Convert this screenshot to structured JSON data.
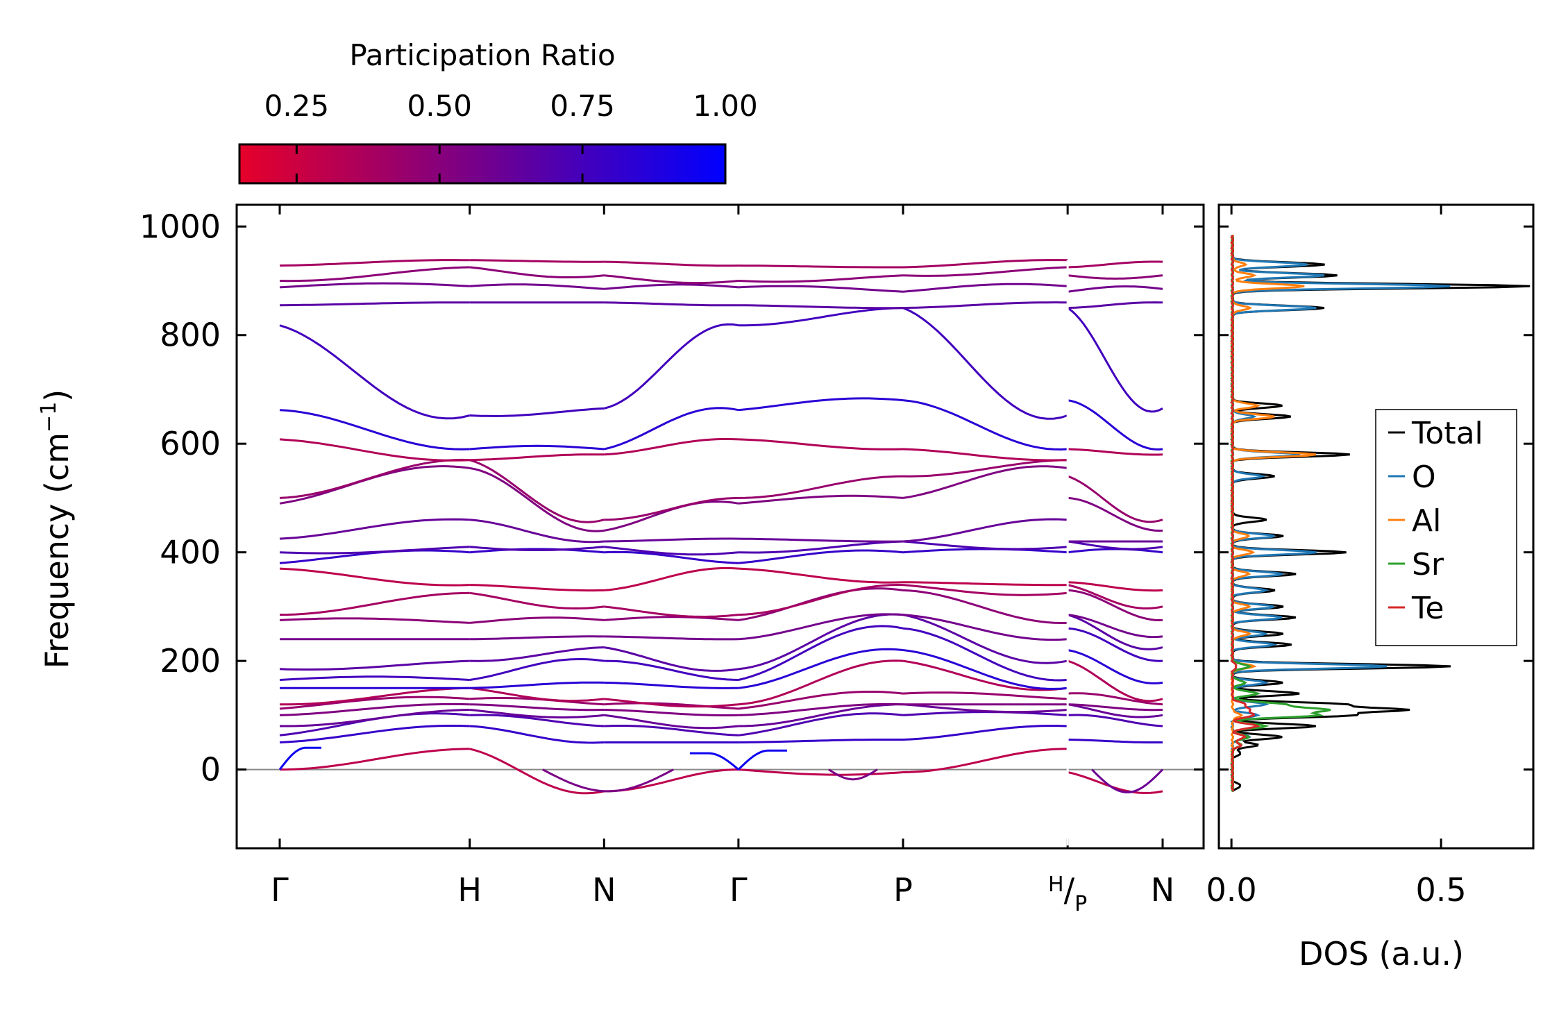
{
  "chart_data": [
    {
      "type": "line",
      "subtype": "phonon-band-structure",
      "ylabel": "Frequency (cm$^{-1}$)",
      "ylabel_main": "Frequency (cm",
      "ylabel_sup": "−1",
      "ylabel_close": ")",
      "ylim": [
        -145,
        1040
      ],
      "y_ticks": [
        0,
        200,
        400,
        600,
        800,
        1000
      ],
      "y_tick_labels": [
        "0",
        "200",
        "400",
        "600",
        "800",
        "1000"
      ],
      "x_segments": [
        {
          "from": "Γ",
          "to": "H",
          "length": 1.414
        },
        {
          "from": "H",
          "to": "N",
          "length": 1.0
        },
        {
          "from": "N",
          "to": "Γ",
          "length": 1.0
        },
        {
          "from": "Γ",
          "to": "P",
          "length": 1.225
        },
        {
          "from": "P",
          "to": "H",
          "length": 1.225
        },
        {
          "from": "P",
          "to": "N",
          "length": 0.707
        }
      ],
      "x_tick_labels": [
        {
          "main": "Γ",
          "sup": "",
          "sub": ""
        },
        {
          "main": "H",
          "sup": "",
          "sub": ""
        },
        {
          "main": "N",
          "sup": "",
          "sub": ""
        },
        {
          "main": "Γ",
          "sup": "",
          "sub": ""
        },
        {
          "main": "P",
          "sup": "",
          "sub": ""
        },
        {
          "main": "/",
          "sup": "H",
          "sub": "P"
        },
        {
          "main": "N",
          "sup": "",
          "sub": ""
        }
      ],
      "zero_line": 0,
      "color_by": "Participation Ratio",
      "bands_at_high_symmetry": {
        "Γ": [
          0,
          50,
          63,
          80,
          100,
          112,
          120,
          150,
          165,
          185,
          240,
          275,
          285,
          370,
          380,
          400,
          425,
          490,
          500,
          608,
          662,
          818,
          855,
          888,
          900,
          928
        ],
        "H": [
          38,
          80,
          100,
          110,
          120,
          130,
          150,
          165,
          200,
          240,
          270,
          325,
          340,
          400,
          410,
          460,
          555,
          570,
          590,
          652,
          860,
          890,
          925,
          938
        ],
        "N": [
          -40,
          50,
          80,
          100,
          110,
          120,
          130,
          160,
          200,
          225,
          245,
          275,
          300,
          330,
          400,
          410,
          420,
          440,
          460,
          580,
          590,
          665,
          860,
          885,
          910,
          935
        ],
        "P": [
          -5,
          55,
          100,
          120,
          140,
          200,
          220,
          260,
          285,
          330,
          340,
          345,
          400,
          420,
          500,
          540,
          590,
          680,
          850,
          880,
          910,
          925
        ]
      }
    },
    {
      "type": "line",
      "subtype": "density-of-states",
      "orientation": "horizontal",
      "xlabel": "DOS (a.u.)",
      "xlim": [
        -0.03,
        0.72
      ],
      "x_ticks": [
        0.0,
        0.5
      ],
      "x_tick_labels": [
        "0.0",
        "0.5"
      ],
      "ylim": [
        -145,
        1040
      ],
      "legend": {
        "placement": "right",
        "entries": [
          "Total",
          "O",
          "Al",
          "Sr",
          "Te"
        ]
      },
      "series": [
        {
          "name": "Total",
          "color": "#000000",
          "peaks": [
            [
              -30,
              0.02
            ],
            [
              30,
              0.02
            ],
            [
              45,
              0.06
            ],
            [
              60,
              0.12
            ],
            [
              80,
              0.2
            ],
            [
              100,
              0.28
            ],
            [
              110,
              0.4
            ],
            [
              120,
              0.26
            ],
            [
              140,
              0.16
            ],
            [
              160,
              0.12
            ],
            [
              190,
              0.52
            ],
            [
              230,
              0.14
            ],
            [
              250,
              0.12
            ],
            [
              280,
              0.15
            ],
            [
              300,
              0.12
            ],
            [
              330,
              0.1
            ],
            [
              360,
              0.15
            ],
            [
              400,
              0.27
            ],
            [
              430,
              0.12
            ],
            [
              460,
              0.08
            ],
            [
              540,
              0.1
            ],
            [
              580,
              0.28
            ],
            [
              650,
              0.14
            ],
            [
              670,
              0.12
            ],
            [
              850,
              0.22
            ],
            [
              890,
              0.71
            ],
            [
              910,
              0.25
            ],
            [
              930,
              0.22
            ]
          ]
        },
        {
          "name": "O",
          "color": "#1f77b4",
          "peaks": [
            [
              60,
              0.04
            ],
            [
              100,
              0.06
            ],
            [
              120,
              0.08
            ],
            [
              160,
              0.08
            ],
            [
              190,
              0.37
            ],
            [
              230,
              0.1
            ],
            [
              250,
              0.08
            ],
            [
              280,
              0.12
            ],
            [
              300,
              0.1
            ],
            [
              330,
              0.08
            ],
            [
              360,
              0.12
            ],
            [
              400,
              0.2
            ],
            [
              430,
              0.1
            ],
            [
              540,
              0.07
            ],
            [
              580,
              0.16
            ],
            [
              650,
              0.05
            ],
            [
              850,
              0.2
            ],
            [
              890,
              0.52
            ],
            [
              910,
              0.22
            ],
            [
              930,
              0.18
            ]
          ]
        },
        {
          "name": "Al",
          "color": "#ff7f0e",
          "peaks": [
            [
              100,
              0.02
            ],
            [
              190,
              0.05
            ],
            [
              250,
              0.04
            ],
            [
              300,
              0.04
            ],
            [
              360,
              0.04
            ],
            [
              400,
              0.05
            ],
            [
              430,
              0.04
            ],
            [
              580,
              0.2
            ],
            [
              650,
              0.1
            ],
            [
              670,
              0.06
            ],
            [
              850,
              0.04
            ],
            [
              890,
              0.17
            ],
            [
              910,
              0.05
            ],
            [
              930,
              0.03
            ]
          ]
        },
        {
          "name": "Sr",
          "color": "#2ca02c",
          "peaks": [
            [
              45,
              0.02
            ],
            [
              60,
              0.04
            ],
            [
              80,
              0.08
            ],
            [
              100,
              0.2
            ],
            [
              110,
              0.22
            ],
            [
              120,
              0.12
            ],
            [
              140,
              0.06
            ],
            [
              160,
              0.03
            ],
            [
              190,
              0.04
            ]
          ]
        },
        {
          "name": "Te",
          "color": "#d62728",
          "peaks": [
            [
              45,
              0.02
            ],
            [
              60,
              0.03
            ],
            [
              80,
              0.06
            ],
            [
              100,
              0.05
            ],
            [
              110,
              0.04
            ],
            [
              120,
              0.03
            ],
            [
              190,
              0.01
            ]
          ]
        }
      ]
    },
    {
      "type": "colorbar",
      "title": "Participation Ratio",
      "range": [
        0.15,
        1.0
      ],
      "ticks": [
        0.25,
        0.5,
        0.75,
        1.0
      ],
      "tick_labels": [
        "0.25",
        "0.50",
        "0.75",
        "1.00"
      ],
      "color_low": "#e6002a",
      "color_high": "#0000ff"
    }
  ]
}
